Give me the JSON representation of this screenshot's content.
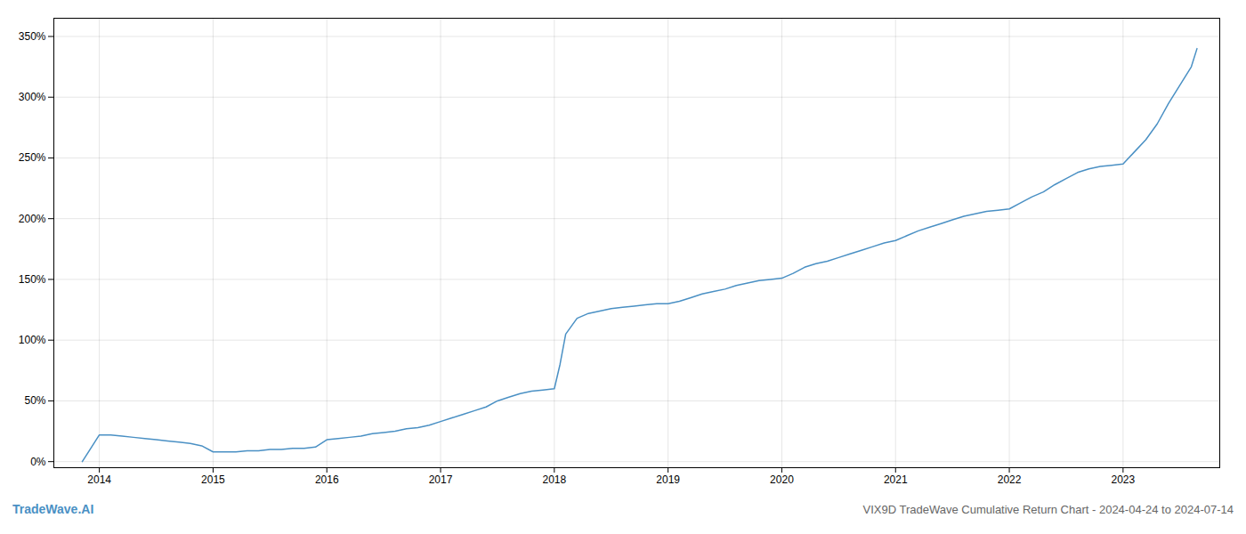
{
  "chart_data": {
    "type": "line",
    "title": "VIX9D TradeWave Cumulative Return Chart - 2024-04-24 to 2024-07-14",
    "annotations": [
      "TradeWave.AI"
    ],
    "color": "#4a90c4",
    "grid": true,
    "x": [
      2013.85,
      2014.0,
      2014.1,
      2014.2,
      2014.3,
      2014.4,
      2014.5,
      2014.6,
      2014.7,
      2014.8,
      2014.9,
      2015.0,
      2015.1,
      2015.2,
      2015.3,
      2015.4,
      2015.5,
      2015.6,
      2015.7,
      2015.8,
      2015.9,
      2016.0,
      2016.1,
      2016.2,
      2016.3,
      2016.4,
      2016.5,
      2016.6,
      2016.7,
      2016.8,
      2016.9,
      2017.0,
      2017.1,
      2017.2,
      2017.3,
      2017.4,
      2017.5,
      2017.6,
      2017.7,
      2017.8,
      2017.9,
      2018.0,
      2018.05,
      2018.1,
      2018.2,
      2018.3,
      2018.4,
      2018.5,
      2018.6,
      2018.7,
      2018.8,
      2018.9,
      2019.0,
      2019.1,
      2019.2,
      2019.3,
      2019.4,
      2019.5,
      2019.6,
      2019.7,
      2019.8,
      2019.9,
      2020.0,
      2020.1,
      2020.2,
      2020.3,
      2020.4,
      2020.5,
      2020.6,
      2020.7,
      2020.8,
      2020.9,
      2021.0,
      2021.1,
      2021.2,
      2021.3,
      2021.4,
      2021.5,
      2021.6,
      2021.7,
      2021.8,
      2021.9,
      2022.0,
      2022.1,
      2022.2,
      2022.3,
      2022.4,
      2022.5,
      2022.6,
      2022.7,
      2022.8,
      2022.9,
      2023.0,
      2023.1,
      2023.2,
      2023.3,
      2023.4,
      2023.5,
      2023.6,
      2023.65
    ],
    "values": [
      0.0,
      0.22,
      0.22,
      0.21,
      0.2,
      0.19,
      0.18,
      0.17,
      0.16,
      0.15,
      0.13,
      0.08,
      0.08,
      0.08,
      0.09,
      0.09,
      0.1,
      0.1,
      0.11,
      0.11,
      0.12,
      0.18,
      0.19,
      0.2,
      0.21,
      0.23,
      0.24,
      0.25,
      0.27,
      0.28,
      0.3,
      0.33,
      0.36,
      0.39,
      0.42,
      0.45,
      0.5,
      0.53,
      0.56,
      0.58,
      0.59,
      0.6,
      0.8,
      1.05,
      1.18,
      1.22,
      1.24,
      1.26,
      1.27,
      1.28,
      1.29,
      1.3,
      1.3,
      1.32,
      1.35,
      1.38,
      1.4,
      1.42,
      1.45,
      1.47,
      1.49,
      1.5,
      1.51,
      1.55,
      1.6,
      1.63,
      1.65,
      1.68,
      1.71,
      1.74,
      1.77,
      1.8,
      1.82,
      1.86,
      1.9,
      1.93,
      1.96,
      1.99,
      2.02,
      2.04,
      2.06,
      2.07,
      2.08,
      2.13,
      2.18,
      2.22,
      2.28,
      2.33,
      2.38,
      2.41,
      2.43,
      2.44,
      2.45,
      2.55,
      2.65,
      2.78,
      2.95,
      3.1,
      3.25,
      3.4
    ],
    "xlim": [
      2013.6,
      2023.85
    ],
    "xticks": [
      2014,
      2015,
      2016,
      2017,
      2018,
      2019,
      2020,
      2021,
      2022,
      2023
    ],
    "ylim": [
      -0.05,
      3.65
    ],
    "yticks": [
      {
        "value": 0.0,
        "label": "0%"
      },
      {
        "value": 0.5,
        "label": "50%"
      },
      {
        "value": 1.0,
        "label": "100%"
      },
      {
        "value": 1.5,
        "label": "150%"
      },
      {
        "value": 2.0,
        "label": "200%"
      },
      {
        "value": 2.5,
        "label": "250%"
      },
      {
        "value": 3.0,
        "label": "300%"
      },
      {
        "value": 3.5,
        "label": "350%"
      }
    ]
  }
}
